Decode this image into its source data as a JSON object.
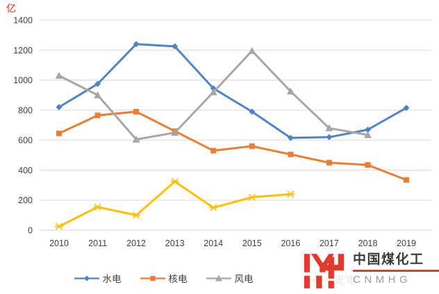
{
  "axis_unit": "亿",
  "colors": {
    "grid": "#d9d9d9",
    "axis_text": "#404040",
    "unit_label": "#e8250f"
  },
  "chart_data": {
    "type": "line",
    "title": "",
    "xlabel": "",
    "ylabel": "亿",
    "ylim": [
      0,
      1400
    ],
    "ytick_step": 200,
    "grid": true,
    "legend_position": "bottom",
    "categories": [
      "2010",
      "2011",
      "2012",
      "2013",
      "2014",
      "2015",
      "2016",
      "2017",
      "2018",
      "2019"
    ],
    "series": [
      {
        "name": "水电",
        "color": "#4e84c4",
        "marker": "diamond",
        "values": [
          820,
          975,
          1240,
          1225,
          945,
          790,
          615,
          620,
          670,
          815
        ]
      },
      {
        "name": "核电",
        "color": "#ed7d31",
        "marker": "square",
        "values": [
          645,
          765,
          790,
          660,
          530,
          560,
          505,
          450,
          435,
          335
        ]
      },
      {
        "name": "风电",
        "color": "#a6a6a6",
        "marker": "triangle",
        "values": [
          1030,
          900,
          605,
          650,
          920,
          1195,
          925,
          680,
          635,
          null
        ]
      },
      {
        "name": "",
        "color": "#ffc000",
        "marker": "asterisk",
        "values": [
          25,
          155,
          100,
          325,
          150,
          220,
          240,
          null,
          null,
          null
        ]
      }
    ]
  },
  "logo": {
    "zh": "中国煤化工",
    "en": "CNMHG",
    "accent_color": "#e23b2e"
  },
  "watermark": {
    "text": "光电"
  }
}
